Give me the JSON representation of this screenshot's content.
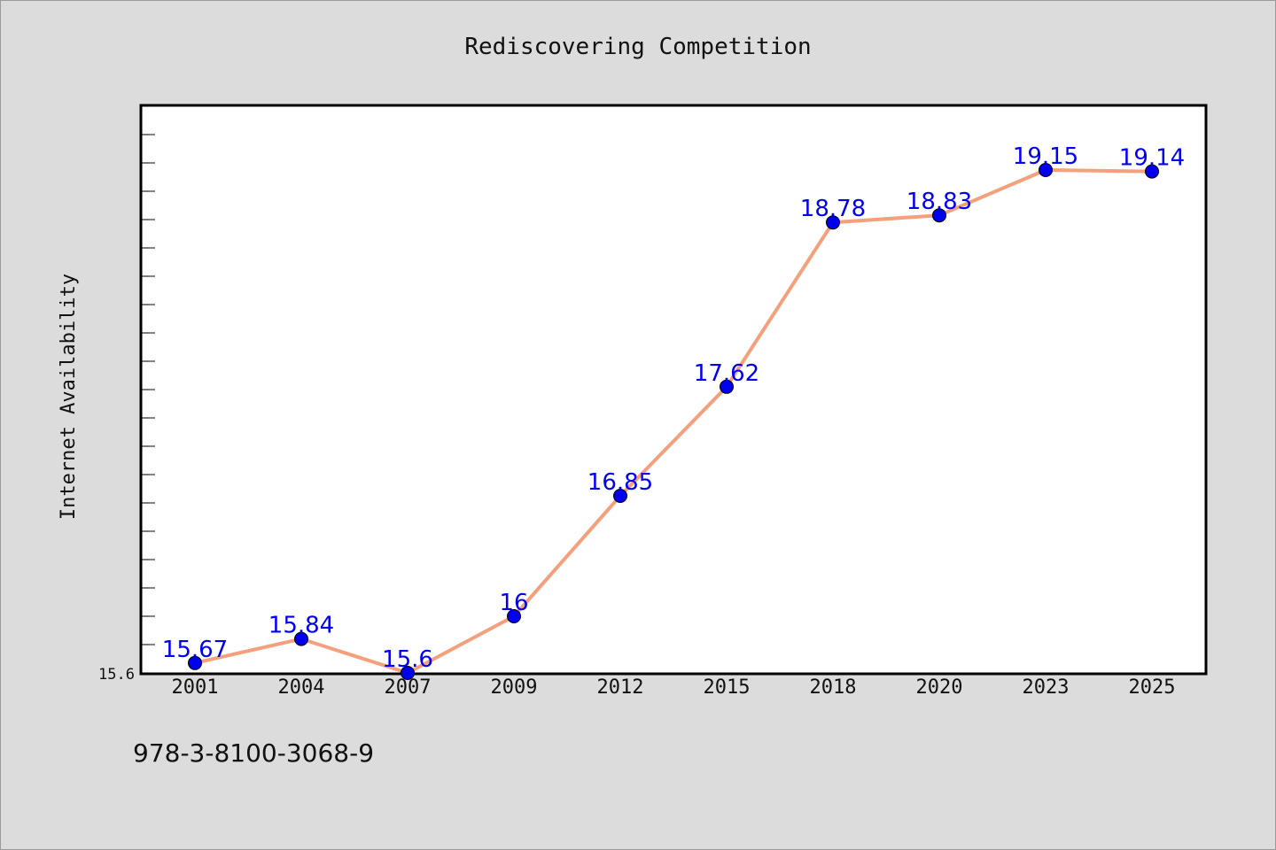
{
  "chart_data": {
    "type": "line",
    "title": "Rediscovering Competition",
    "xlabel": "",
    "ylabel": "Internet Availability",
    "categories": [
      "2001",
      "2004",
      "2007",
      "2009",
      "2012",
      "2015",
      "2018",
      "2020",
      "2023",
      "2025"
    ],
    "series": [
      {
        "values": [
          15.67,
          15.84,
          15.6,
          16,
          16.85,
          17.62,
          18.78,
          18.83,
          19.15,
          19.14
        ],
        "data_labels": [
          "15.67",
          "15.84",
          "15.6",
          "16",
          "16.85",
          "17.62",
          "18.78",
          "18.83",
          "19.15",
          "19.14"
        ]
      }
    ],
    "ylim": [
      15.6,
      19.6
    ],
    "y_tick_label_shown": "15.6",
    "y_minor_tick_step": 0.2,
    "grid": false,
    "colors": {
      "line": "#f4a07c",
      "marker": "#0000ee",
      "data_label": "#0000ee",
      "background": "#dcdcdc",
      "plot_background": "#ffffff"
    }
  },
  "footer": {
    "code": "978-3-8100-3068-9"
  }
}
